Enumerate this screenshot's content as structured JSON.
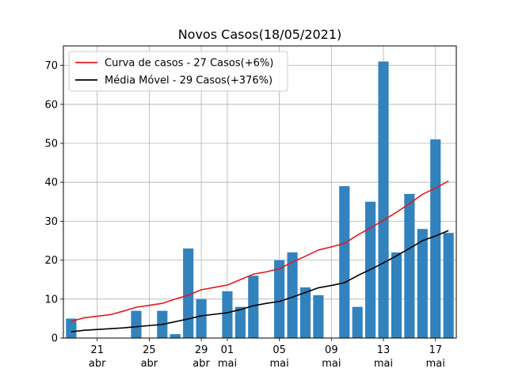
{
  "chart_data": {
    "type": "bar",
    "title": "Novos Casos(18/05/2021)",
    "xlabel": "",
    "ylabel": "",
    "ylim": [
      0,
      75
    ],
    "yticks": [
      0,
      10,
      20,
      30,
      40,
      50,
      60,
      70
    ],
    "grid": true,
    "legend_position": "top-left",
    "x_range_days": [
      -0.6,
      29.6
    ],
    "x_ticks": [
      {
        "day": 2,
        "label": "21",
        "month": "abr"
      },
      {
        "day": 6,
        "label": "25",
        "month": "abr"
      },
      {
        "day": 10,
        "label": "29",
        "month": "abr"
      },
      {
        "day": 12,
        "label": "01",
        "month": "mai"
      },
      {
        "day": 16,
        "label": "05",
        "month": "mai"
      },
      {
        "day": 20,
        "label": "09",
        "month": "mai"
      },
      {
        "day": 24,
        "label": "13",
        "month": "mai"
      },
      {
        "day": 28,
        "label": "17",
        "month": "mai"
      }
    ],
    "bar_color": "#3182bd",
    "bars": {
      "days": [
        0,
        1,
        2,
        3,
        4,
        5,
        6,
        7,
        8,
        9,
        10,
        11,
        12,
        13,
        14,
        15,
        16,
        17,
        18,
        19,
        20,
        21,
        22,
        23,
        24,
        25,
        26,
        27,
        28,
        29
      ],
      "values": [
        5,
        0,
        0,
        0,
        0,
        7,
        0,
        7,
        1,
        23,
        10,
        0,
        12,
        8,
        16,
        0,
        20,
        22,
        13,
        11,
        0,
        39,
        8,
        35,
        71,
        22,
        37,
        28,
        51,
        27
      ]
    },
    "series": [
      {
        "name": "Curva de casos - 27 Casos(+6%)",
        "color": "#e41a1c",
        "days": [
          0,
          1,
          2,
          3,
          4,
          5,
          6,
          7,
          8,
          9,
          10,
          11,
          12,
          13,
          14,
          15,
          16,
          17,
          18,
          19,
          20,
          21,
          22,
          23,
          24,
          25,
          26,
          27,
          28,
          29
        ],
        "values": [
          4.3,
          5.2,
          5.6,
          6.0,
          6.9,
          7.9,
          8.4,
          8.9,
          10.0,
          11.0,
          12.4,
          13.0,
          13.6,
          15.0,
          16.4,
          17.0,
          17.8,
          19.5,
          21.0,
          22.6,
          23.4,
          24.3,
          26.4,
          28.3,
          30.2,
          32.3,
          34.5,
          36.9,
          38.5,
          40.3
        ]
      },
      {
        "name": "Média Móvel - 29 Casos(+376%)",
        "color": "#000000",
        "days": [
          0,
          1,
          2,
          3,
          4,
          5,
          6,
          7,
          8,
          9,
          10,
          11,
          12,
          13,
          14,
          15,
          16,
          17,
          18,
          19,
          20,
          21,
          22,
          23,
          24,
          25,
          26,
          27,
          28,
          29
        ],
        "values": [
          1.6,
          2.0,
          2.2,
          2.4,
          2.6,
          2.9,
          3.2,
          3.5,
          4.2,
          4.9,
          5.7,
          6.1,
          6.5,
          7.3,
          8.3,
          8.9,
          9.4,
          10.5,
          11.7,
          12.9,
          13.5,
          14.2,
          16.0,
          17.6,
          19.3,
          21.1,
          23.0,
          25.0,
          26.2,
          27.6
        ]
      }
    ]
  }
}
